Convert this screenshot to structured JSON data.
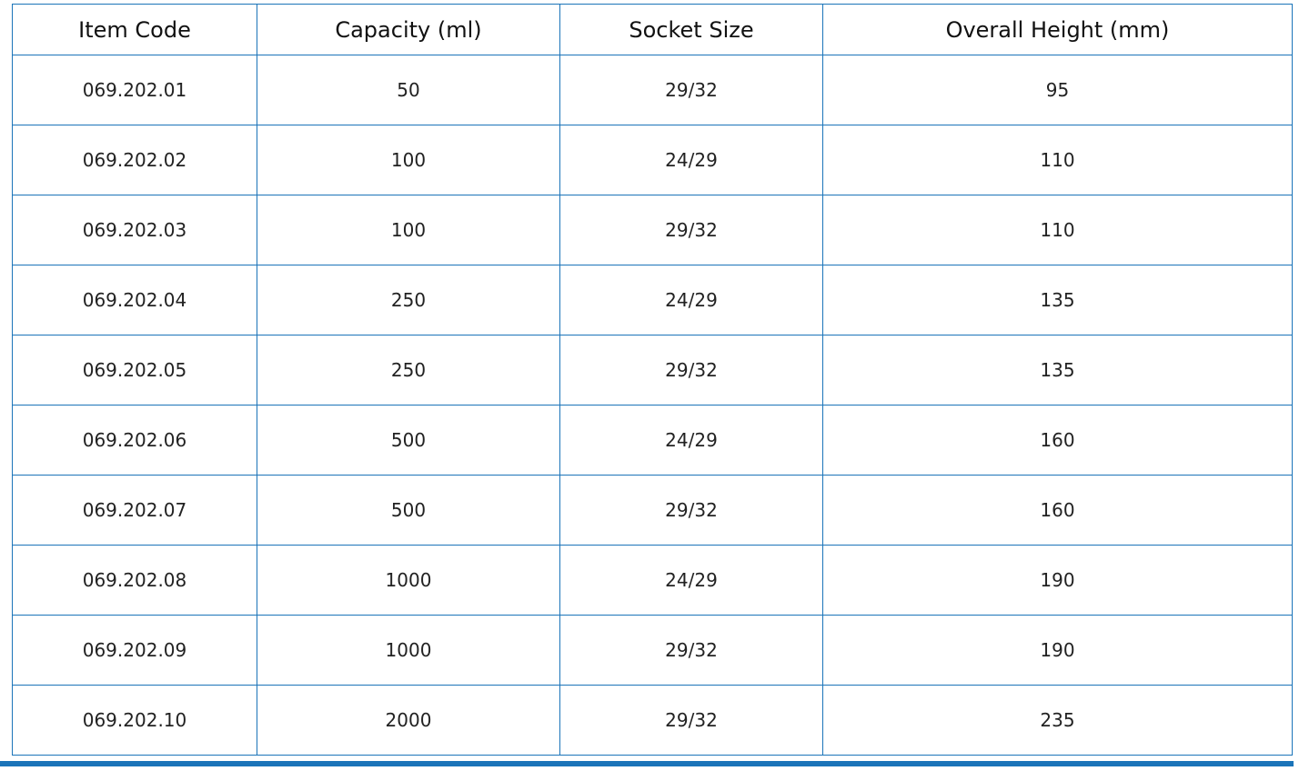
{
  "table": {
    "headers": [
      "Item Code",
      "Capacity (ml)",
      "Socket Size",
      "Overall Height (mm)"
    ],
    "rows": [
      [
        "069.202.01",
        "50",
        "29/32",
        "95"
      ],
      [
        "069.202.02",
        "100",
        "24/29",
        "110"
      ],
      [
        "069.202.03",
        "100",
        "29/32",
        "110"
      ],
      [
        "069.202.04",
        "250",
        "24/29",
        "135"
      ],
      [
        "069.202.05",
        "250",
        "29/32",
        "135"
      ],
      [
        "069.202.06",
        "500",
        "24/29",
        "160"
      ],
      [
        "069.202.07",
        "500",
        "29/32",
        "160"
      ],
      [
        "069.202.08",
        "1000",
        "24/29",
        "190"
      ],
      [
        "069.202.09",
        "1000",
        "29/32",
        "190"
      ],
      [
        "069.202.10",
        "2000",
        "29/32",
        "235"
      ]
    ]
  },
  "colors": {
    "border": "#1b74b9",
    "background": "#ffffff",
    "text": "#222222"
  }
}
